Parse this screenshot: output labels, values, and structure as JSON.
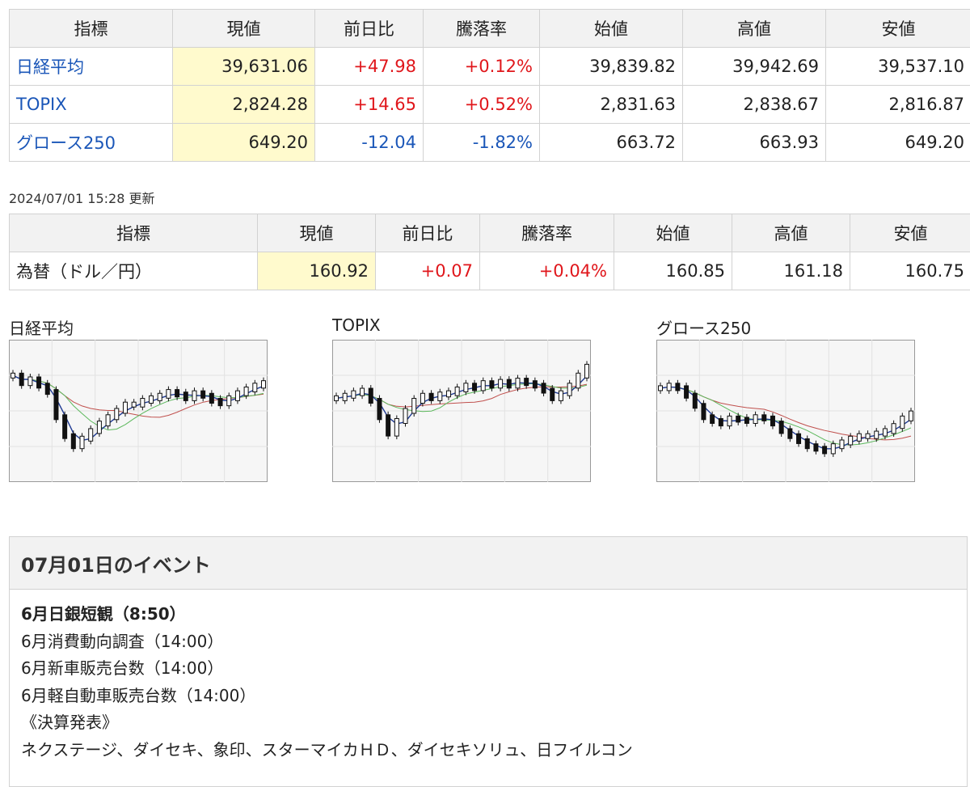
{
  "indices_table": {
    "headers": [
      "指標",
      "現値",
      "前日比",
      "騰落率",
      "始値",
      "高値",
      "安値"
    ],
    "rows": [
      {
        "name": "日経平均",
        "current": "39,631.06",
        "change": "+47.98",
        "pct": "+0.12%",
        "open": "39,839.82",
        "high": "39,942.69",
        "low": "39,537.10",
        "dir": "up"
      },
      {
        "name": "TOPIX",
        "current": "2,824.28",
        "change": "+14.65",
        "pct": "+0.52%",
        "open": "2,831.63",
        "high": "2,838.67",
        "low": "2,816.87",
        "dir": "up"
      },
      {
        "name": "グロース250",
        "current": "649.20",
        "change": "-12.04",
        "pct": "-1.82%",
        "open": "663.72",
        "high": "663.93",
        "low": "649.20",
        "dir": "down"
      }
    ]
  },
  "update_stamp": "2024/07/01 15:28 更新",
  "fx_table": {
    "headers": [
      "指標",
      "現値",
      "前日比",
      "騰落率",
      "始値",
      "高値",
      "安値"
    ],
    "rows": [
      {
        "name": "為替（ドル／円）",
        "current": "160.92",
        "change": "+0.07",
        "pct": "+0.04%",
        "open": "160.85",
        "high": "161.18",
        "low": "160.75",
        "dir": "up"
      }
    ]
  },
  "charts": [
    {
      "title": "日経平均"
    },
    {
      "title": "TOPIX"
    },
    {
      "title": "グロース250"
    }
  ],
  "colors": {
    "up": "#e0161b",
    "down": "#1a56b8",
    "current_bg": "#fffacd",
    "ma_short": "#1f3a93",
    "ma_mid": "#5cb85c",
    "ma_long": "#c0504d"
  },
  "events": {
    "title": "07月01日のイベント",
    "lines": [
      {
        "text": "6月日銀短観（8:50）",
        "bold": true
      },
      {
        "text": "6月消費動向調査（14:00）",
        "bold": false
      },
      {
        "text": "6月新車販売台数（14:00）",
        "bold": false
      },
      {
        "text": "6月軽自動車販売台数（14:00）",
        "bold": false
      },
      {
        "text": "《決算発表》",
        "bold": false
      },
      {
        "text": "ネクステージ、ダイセキ、象印、スターマイカＨＤ、ダイセキソリュ、日フイルコン",
        "bold": false
      }
    ]
  }
}
